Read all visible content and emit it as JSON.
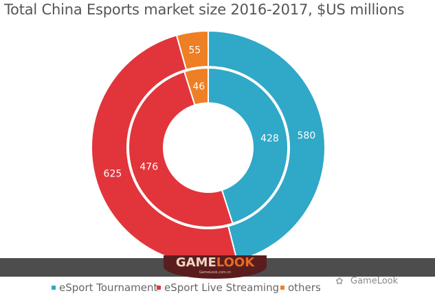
{
  "chart_data": {
    "type": "pie",
    "subtype": "nested-donut",
    "title": "Total China Esports market size 2016-2017, $US millions",
    "categories": [
      "eSport Tournament",
      "eSport Live Streaming",
      "others"
    ],
    "colors": [
      "#30a8c8",
      "#e1353b",
      "#ee7f24"
    ],
    "series": [
      {
        "ring": "inner",
        "values": [
          428,
          476,
          46
        ]
      },
      {
        "ring": "outer",
        "values": [
          580,
          625,
          55
        ]
      }
    ],
    "legend": "bottom"
  },
  "watermark": {
    "logo": "GAMELOOK",
    "logo_url_text": "GameLook.com.cn",
    "account": "GameLook"
  }
}
